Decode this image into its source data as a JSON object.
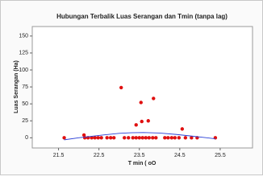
{
  "chart_data": {
    "type": "scatter",
    "title": "Hubungan Terbalik Luas Serangan dan Tmin (tanpa lag)",
    "x_label": "T min ( oO",
    "y_label": "Luas Serangan (Ha)",
    "xlim": [
      20.85,
      26.3
    ],
    "ylim": [
      -15,
      164
    ],
    "xticks": [
      21.5,
      22.5,
      23.5,
      24.5,
      25.5
    ],
    "yticks": [
      0,
      25,
      50,
      75,
      100,
      125,
      150
    ],
    "series": [
      {
        "mode": "markers",
        "color": "#e01010",
        "x": [
          21.64,
          22.13,
          22.15,
          22.23,
          22.32,
          22.4,
          22.48,
          22.56,
          22.7,
          22.79,
          22.87,
          23.05,
          23.13,
          23.23,
          23.34,
          23.42,
          23.42,
          23.5,
          23.54,
          23.56,
          23.58,
          23.66,
          23.72,
          23.74,
          23.83,
          23.85,
          23.91,
          24.13,
          24.21,
          24.3,
          24.38,
          24.48,
          24.56,
          24.64,
          24.79,
          24.93,
          25.38
        ],
        "values": [
          0,
          4,
          0,
          0,
          0,
          0,
          0,
          0,
          0,
          0,
          0,
          74,
          0,
          0,
          0,
          0,
          19,
          0,
          52,
          24,
          0,
          0,
          25,
          0,
          0,
          58,
          0,
          0,
          0,
          0,
          0,
          0,
          13,
          0,
          0,
          0,
          0
        ]
      },
      {
        "mode": "line",
        "color": "#2a3fd6",
        "x": [
          21.64,
          22.0,
          22.5,
          23.0,
          23.3,
          23.6,
          24.0,
          24.4,
          24.8,
          25.1,
          25.38
        ],
        "values": [
          -3,
          0,
          3.5,
          6.5,
          7.5,
          7.8,
          7,
          5,
          2.5,
          0.5,
          -1.5
        ]
      }
    ]
  }
}
